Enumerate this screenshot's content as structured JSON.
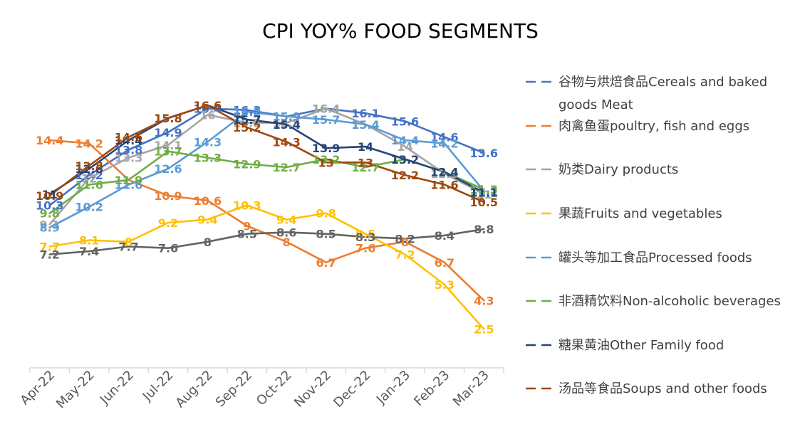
{
  "chart_data": {
    "type": "line",
    "title": "CPI YOY% FOOD SEGMENTS",
    "xlabel": "",
    "ylabel": "",
    "categories": [
      "Apr-22",
      "May-22",
      "Jun-22",
      "Jul-22",
      "Aug-22",
      "Sep-22",
      "Oct-22",
      "Nov-22",
      "Dec-22",
      "Jan-23",
      "Feb-23",
      "Mar-23"
    ],
    "ylim": [
      0,
      18
    ],
    "grid": false,
    "legend_position": "right",
    "series": [
      {
        "name": "谷物与烘焙食品Cereals and baked goods Meat",
        "color": "#4472C4",
        "values": [
          10.3,
          12.2,
          13.8,
          14.9,
          16.4,
          16.3,
          15.9,
          16.4,
          16.1,
          15.6,
          14.6,
          13.6
        ]
      },
      {
        "name": "肉禽鱼蛋poultry, fish and eggs",
        "color": "#ED7D31",
        "values": [
          14.4,
          14.2,
          11.9,
          10.9,
          10.6,
          9,
          8,
          6.7,
          7.6,
          8,
          6.7,
          4.3
        ]
      },
      {
        "name": "奶类Dairy products",
        "color": "#A5A5A5",
        "values": [
          9.1,
          12,
          13.3,
          14.1,
          16,
          15.5,
          15.5,
          16.4,
          15.4,
          14,
          12.3,
          11
        ]
      },
      {
        "name": "果蔬Fruits and vegetables",
        "color": "#FFC000",
        "values": [
          7.7,
          8.1,
          8,
          9.2,
          9.4,
          10.3,
          9.4,
          9.8,
          8.5,
          7.2,
          5.3,
          2.5
        ]
      },
      {
        "name": "罐头等加工食品Processed foods",
        "color": "#5B9BD5",
        "values": [
          8.9,
          10.2,
          11.6,
          12.6,
          14.3,
          16.2,
          15.9,
          15.7,
          15.4,
          14.4,
          14.2,
          11.2
        ]
      },
      {
        "name": "非酒精饮料Non-alcoholic beverages",
        "color": "#70AD47",
        "values": [
          9.8,
          11.6,
          11.9,
          13.7,
          13.3,
          12.9,
          12.7,
          13.2,
          12.7,
          13.2,
          12.4,
          11.3
        ]
      },
      {
        "name": "糖果黄油Other Family food",
        "color": "#264478",
        "values": [
          11,
          12.6,
          14.4,
          15.8,
          16.6,
          15.7,
          15.4,
          13.9,
          14,
          13.2,
          12.4,
          11.1
        ]
      },
      {
        "name": "汤品等食品Soups and other foods",
        "color": "#9E480E",
        "values": [
          10.9,
          12.8,
          14.6,
          15.8,
          16.6,
          15.2,
          14.3,
          13,
          13,
          12.2,
          11.6,
          10.5
        ]
      },
      {
        "name": "",
        "color": "#636363",
        "values": [
          7.2,
          7.4,
          7.7,
          7.6,
          8,
          8.5,
          8.6,
          8.5,
          8.3,
          8.2,
          8.4,
          8.8
        ]
      }
    ]
  },
  "legend": {
    "entries": [
      {
        "line1": "谷物与烘焙食品Cereals and baked",
        "line2": "goods Meat",
        "color": "#4472C4"
      },
      {
        "line1": "肉禽鱼蛋poultry, fish and eggs",
        "line2": "",
        "color": "#ED7D31"
      },
      {
        "line1": "奶类Dairy products",
        "line2": "",
        "color": "#A5A5A5"
      },
      {
        "line1": "果蔬Fruits and vegetables",
        "line2": "",
        "color": "#FFC000"
      },
      {
        "line1": "罐头等加工食品Processed foods",
        "line2": "",
        "color": "#5B9BD5"
      },
      {
        "line1": "非酒精饮料Non-alcoholic beverages",
        "line2": "",
        "color": "#70AD47"
      },
      {
        "line1": "糖果黄油Other Family food",
        "line2": "",
        "color": "#264478"
      },
      {
        "line1": "汤品等食品Soups and other foods",
        "line2": "",
        "color": "#9E480E"
      }
    ]
  }
}
